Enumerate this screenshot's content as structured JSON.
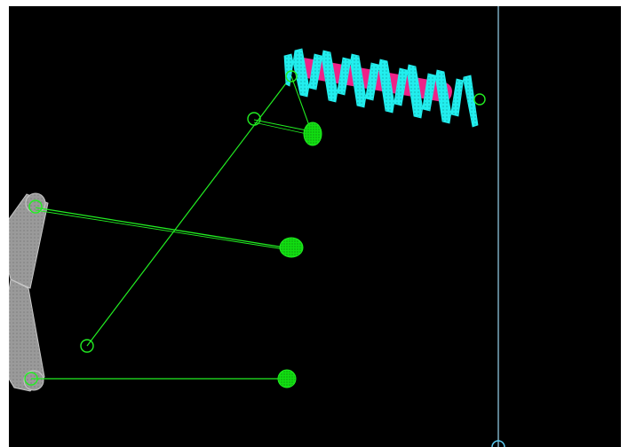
{
  "viewport": {
    "background": "#000000",
    "frame": "#ffffff"
  },
  "colors": {
    "link": "#22ee22",
    "joint": "#22ee22",
    "mass": "#11dd11",
    "spring": "#22eeee",
    "spring_core": "#ee2288",
    "bar": "#9a9a9a",
    "bar_edge": "#c8c8c8",
    "wall": "#9ad6ee"
  },
  "icons": {
    "joint": "circle-outline-icon",
    "mass": "filled-ellipse-icon"
  }
}
